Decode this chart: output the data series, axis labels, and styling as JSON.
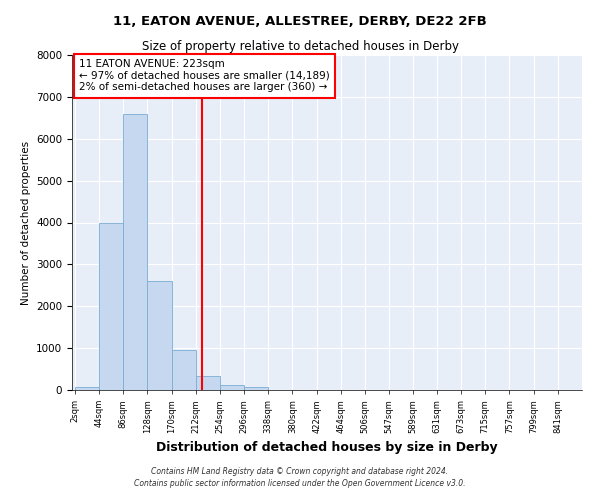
{
  "title1": "11, EATON AVENUE, ALLESTREE, DERBY, DE22 2FB",
  "title2": "Size of property relative to detached houses in Derby",
  "xlabel": "Distribution of detached houses by size in Derby",
  "ylabel": "Number of detached properties",
  "bar_color": "#c5d8ef",
  "bar_edge_color": "#7aadd4",
  "background_color": "#e8eef8",
  "grid_color": "#ffffff",
  "annotation_line_color": "red",
  "annotation_text": "11 EATON AVENUE: 223sqm\n← 97% of detached houses are smaller (14,189)\n2% of semi-detached houses are larger (360) →",
  "property_sqm": 223,
  "bins": [
    2,
    44,
    86,
    128,
    170,
    212,
    254,
    296,
    338,
    380,
    422,
    464,
    506,
    547,
    589,
    631,
    673,
    715,
    757,
    799,
    841
  ],
  "bin_labels": [
    "2sqm",
    "44sqm",
    "86sqm",
    "128sqm",
    "170sqm",
    "212sqm",
    "254sqm",
    "296sqm",
    "338sqm",
    "380sqm",
    "422sqm",
    "464sqm",
    "506sqm",
    "547sqm",
    "589sqm",
    "631sqm",
    "673sqm",
    "715sqm",
    "757sqm",
    "799sqm",
    "841sqm"
  ],
  "counts": [
    75,
    4000,
    6600,
    2600,
    960,
    330,
    110,
    65,
    0,
    0,
    0,
    0,
    0,
    0,
    0,
    0,
    0,
    0,
    0,
    0
  ],
  "ylim": [
    0,
    8000
  ],
  "yticks": [
    0,
    1000,
    2000,
    3000,
    4000,
    5000,
    6000,
    7000,
    8000
  ],
  "footer1": "Contains HM Land Registry data © Crown copyright and database right 2024.",
  "footer2": "Contains public sector information licensed under the Open Government Licence v3.0."
}
